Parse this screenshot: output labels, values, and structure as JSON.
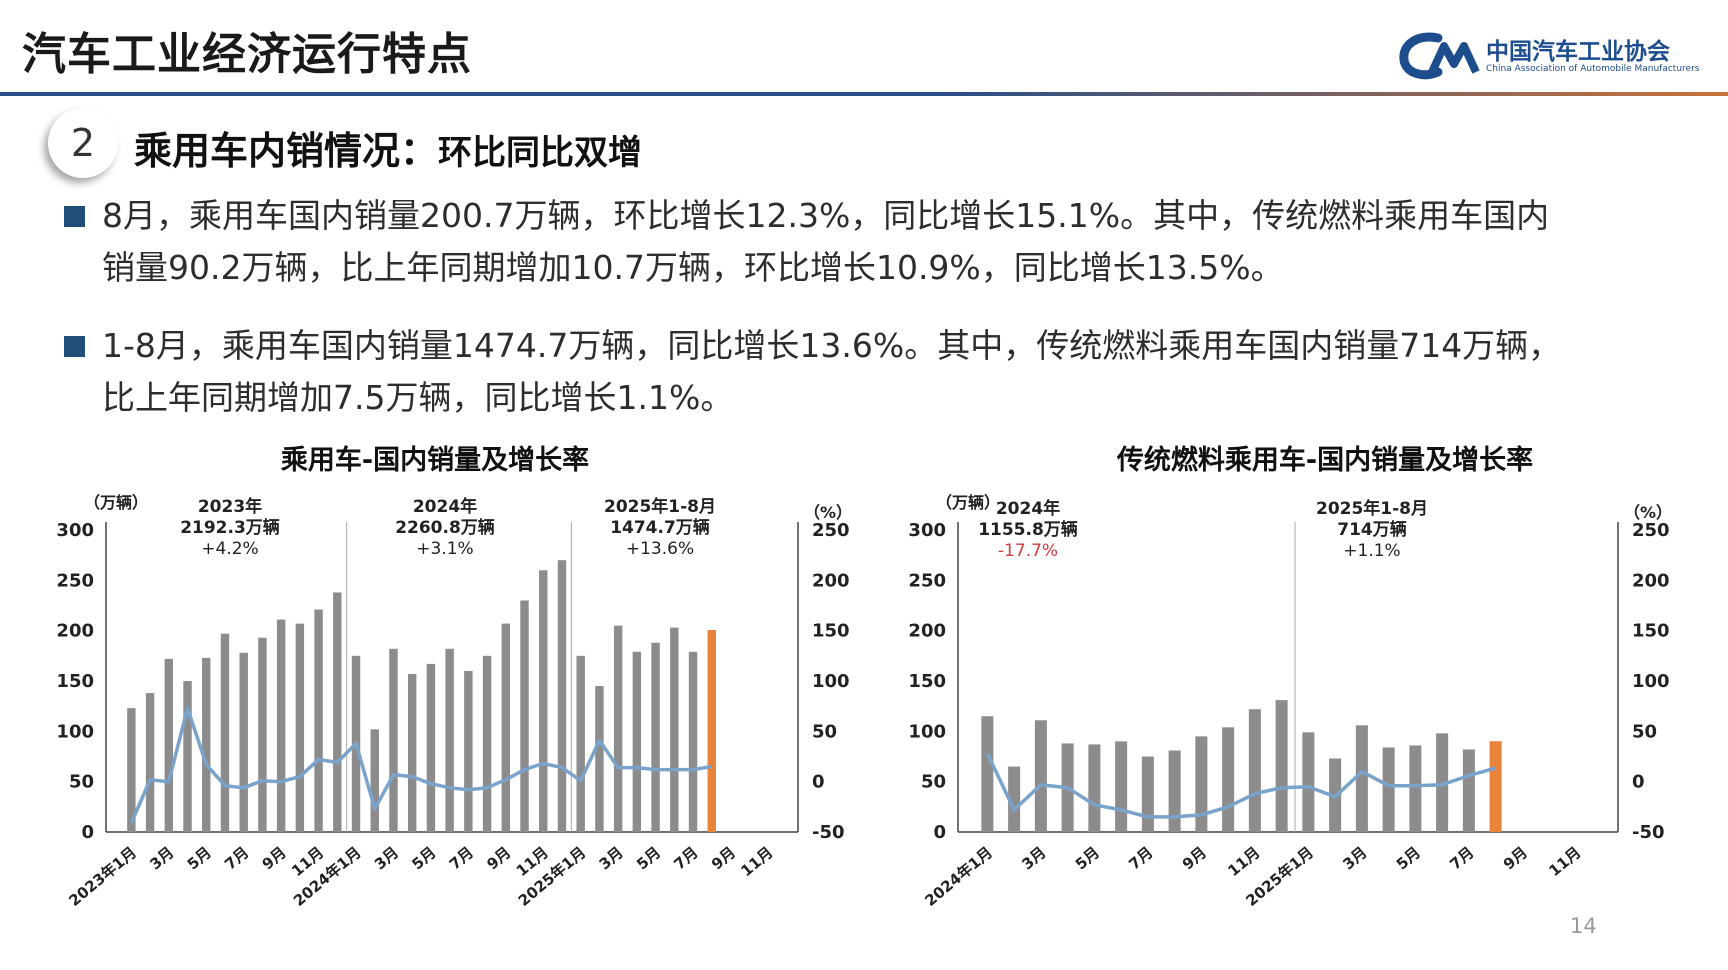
{
  "header": {
    "title": "汽车工业经济运行特点"
  },
  "logo": {
    "name": "中国汽车工业协会",
    "en": "China Association of Automobile Manufacturers"
  },
  "section": {
    "number": "2",
    "title": "乘用车内销情况：",
    "subtitle": "环比同比双增"
  },
  "paragraphs": [
    {
      "line1": "8月，乘用车国内销量200.7万辆，环比增长12.3%，同比增长15.1%。其中，传统燃料乘用车国内",
      "line2": "销量90.2万辆，比上年同期增加10.7万辆，环比增长10.9%，同比增长13.5%。"
    },
    {
      "line1": "1-8月，乘用车国内销量1474.7万辆，同比增长13.6%。其中，传统燃料乘用车国内销量714万辆，",
      "line2": "比上年同期增加7.5万辆，同比增长1.1%。"
    }
  ],
  "page_number": "14",
  "colors": {
    "bar": "#8c8c8c",
    "bar_highlight": "#e8843a",
    "line": "#7aa3cc",
    "negative_note": "#d23b3b",
    "accent": "#1f4e79"
  },
  "chart_data": [
    {
      "type": "bar",
      "title": "乘用车-国内销量及增长率",
      "y_left_label": "（万辆）",
      "y_right_label": "（%）",
      "ylim_left": [
        0,
        300
      ],
      "ylim_right": [
        -50,
        250
      ],
      "y_left_ticks": [
        "0",
        "50",
        "100",
        "150",
        "200",
        "250",
        "300"
      ],
      "y_right_ticks": [
        "-50",
        "0",
        "50",
        "100",
        "150",
        "200",
        "250"
      ],
      "x_tick_labels": [
        "2023年1月",
        "3月",
        "5月",
        "7月",
        "9月",
        "11月",
        "2024年1月",
        "3月",
        "5月",
        "7月",
        "9月",
        "11月",
        "2025年1月",
        "3月",
        "5月",
        "7月",
        "9月",
        "11月"
      ],
      "slots": 36,
      "separators_after": [
        12,
        24
      ],
      "annotations": [
        {
          "year": "2023年",
          "total": "2192.3万辆",
          "growth": "+4.2%",
          "negative": false
        },
        {
          "year": "2024年",
          "total": "2260.8万辆",
          "growth": "+3.1%",
          "negative": false
        },
        {
          "year": "2025年1-8月",
          "total": "1474.7万辆",
          "growth": "+13.6%",
          "negative": false
        }
      ],
      "series": [
        {
          "axis": "left",
          "values": [
            123,
            138,
            172,
            150,
            173,
            197,
            178,
            193,
            211,
            207,
            221,
            238,
            175,
            102,
            182,
            157,
            167,
            182,
            160,
            175,
            207,
            230,
            260,
            270,
            175,
            145,
            205,
            179,
            188,
            203,
            179,
            200.7
          ],
          "highlight_index": 31
        },
        {
          "axis": "right",
          "values": [
            -41,
            2,
            0,
            73,
            17,
            -4,
            -6,
            1,
            0,
            5,
            22,
            19,
            38,
            -27,
            7,
            5,
            -2,
            -6,
            -8,
            -6,
            2,
            12,
            18,
            14,
            1,
            41,
            14,
            14,
            12,
            12,
            12,
            15.1
          ]
        }
      ]
    },
    {
      "type": "bar",
      "title": "传统燃料乘用车-国内销量及增长率",
      "y_left_label": "（万辆）",
      "y_right_label": "（%）",
      "ylim_left": [
        0,
        300
      ],
      "ylim_right": [
        -50,
        250
      ],
      "y_left_ticks": [
        "0",
        "50",
        "100",
        "150",
        "200",
        "250",
        "300"
      ],
      "y_right_ticks": [
        "-50",
        "0",
        "50",
        "100",
        "150",
        "200",
        "250"
      ],
      "x_tick_labels": [
        "2024年1月",
        "3月",
        "5月",
        "7月",
        "9月",
        "11月",
        "2025年1月",
        "3月",
        "5月",
        "7月",
        "9月",
        "11月"
      ],
      "slots": 24,
      "separators_after": [
        12
      ],
      "annotations": [
        {
          "year": "2024年",
          "total": "1155.8万辆",
          "growth": "-17.7%",
          "negative": true
        },
        {
          "year": "2025年1-8月",
          "total": "714万辆",
          "growth": "+1.1%",
          "negative": false
        }
      ],
      "series": [
        {
          "axis": "left",
          "values": [
            115,
            65,
            111,
            88,
            87,
            90,
            75,
            81,
            95,
            104,
            122,
            131,
            99,
            73,
            106,
            84,
            86,
            98,
            82,
            90.2
          ],
          "highlight_index": 19
        },
        {
          "axis": "right",
          "values": [
            28,
            -28,
            -3,
            -6,
            -23,
            -28,
            -35,
            -35,
            -33,
            -25,
            -12,
            -6,
            -5,
            -15,
            10,
            -4,
            -4,
            -3,
            6,
            13.5
          ]
        }
      ]
    }
  ]
}
